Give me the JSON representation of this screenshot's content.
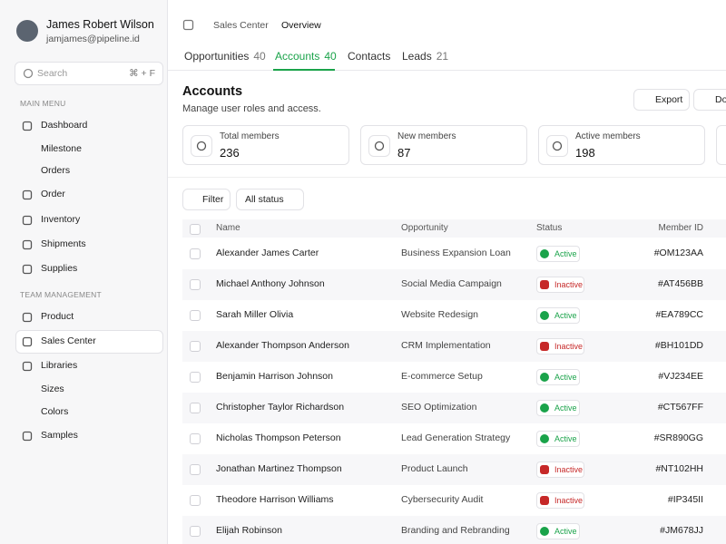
{
  "user": {
    "name": "James Robert Wilson",
    "email": "jamjames@pipeline.id"
  },
  "search": {
    "placeholder": "Search",
    "shortcut": "⌘ + F"
  },
  "menu": [
    {
      "section": "MAIN MENU",
      "items": [
        {
          "label": "Dashboard",
          "children": [
            "Milestone",
            "Orders"
          ]
        },
        {
          "label": "Order"
        },
        {
          "label": "Inventory"
        },
        {
          "label": "Shipments"
        },
        {
          "label": "Supplies"
        }
      ]
    },
    {
      "section": "TEAM MANAGEMENT",
      "items": [
        {
          "label": "Product"
        },
        {
          "label": "Sales Center",
          "active": true
        },
        {
          "label": "Libraries",
          "children": [
            "Sizes",
            "Colors"
          ]
        },
        {
          "label": "Samples"
        }
      ]
    }
  ],
  "breadcrumb": [
    "Sales Center",
    "Overview"
  ],
  "tabs": [
    {
      "label": "Opportunities",
      "count": 40
    },
    {
      "label": "Accounts",
      "count": 40,
      "active": true
    },
    {
      "label": "Contacts"
    },
    {
      "label": "Leads",
      "count": 21
    }
  ],
  "header": {
    "title": "Accounts",
    "subtitle": "Manage user roles and access.",
    "buttons": [
      "Export",
      "Download"
    ]
  },
  "stats": [
    {
      "label": "Total members",
      "value": 236
    },
    {
      "label": "New members",
      "value": 87
    },
    {
      "label": "Active members",
      "value": 198
    }
  ],
  "filters": [
    "Filter",
    "All status"
  ],
  "table": {
    "columns": [
      "Name",
      "Opportunity",
      "Status",
      "Member ID"
    ],
    "rows": [
      [
        "Alexander James Carter",
        "Business Expansion Loan",
        "Active",
        "#OM123AA"
      ],
      [
        "Michael Anthony Johnson",
        "Social Media Campaign",
        "Inactive",
        "#AT456BB"
      ],
      [
        "Sarah Miller Olivia",
        "Website Redesign",
        "Active",
        "#EA789CC"
      ],
      [
        "Alexander Thompson Anderson",
        "CRM Implementation",
        "Inactive",
        "#BH101DD"
      ],
      [
        "Benjamin Harrison Johnson",
        "E-commerce Setup",
        "Active",
        "#VJ234EE"
      ],
      [
        "Christopher Taylor Richardson",
        "SEO Optimization",
        "Active",
        "#CT567FF"
      ],
      [
        "Nicholas Thompson Peterson",
        "Lead Generation Strategy",
        "Active",
        "#SR890GG"
      ],
      [
        "Jonathan Martinez Thompson",
        "Product Launch",
        "Inactive",
        "#NT102HH"
      ],
      [
        "Theodore Harrison Williams",
        "Cybersecurity Audit",
        "Inactive",
        "#IP345II"
      ],
      [
        "Elijah Robinson",
        "Branding and Rebranding",
        "Active",
        "#JM678JJ"
      ]
    ]
  }
}
